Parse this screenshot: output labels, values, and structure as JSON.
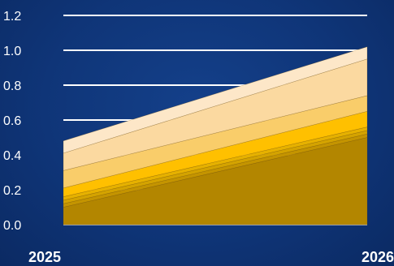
{
  "chart_data": {
    "type": "area",
    "stacked": true,
    "title": "",
    "xlabel": "",
    "ylabel": "",
    "x": [
      "2025",
      "2026"
    ],
    "ylim": [
      0,
      1.2
    ],
    "yticks": [
      "0.0",
      "0.2",
      "0.4",
      "0.6",
      "0.8",
      "1.0",
      "1.2"
    ],
    "grid": true,
    "legend": "none",
    "series": [
      {
        "values": [
          0.1,
          0.5
        ],
        "color": "#b38600"
      },
      {
        "values": [
          0.02,
          0.02
        ],
        "color": "#c49400"
      },
      {
        "values": [
          0.02,
          0.02
        ],
        "color": "#d4a300"
      },
      {
        "values": [
          0.02,
          0.02
        ],
        "color": "#e6b100"
      },
      {
        "values": [
          0.05,
          0.09
        ],
        "color": "#ffc000"
      },
      {
        "values": [
          0.1,
          0.09
        ],
        "color": "#f9cd6a"
      },
      {
        "values": [
          0.1,
          0.21
        ],
        "color": "#fbd9a0"
      },
      {
        "values": [
          0.07,
          0.07
        ],
        "color": "#fde7c8"
      }
    ],
    "colors": {
      "background": "#0f3578",
      "grid": "#ffffff",
      "text": "#ffffff"
    }
  }
}
